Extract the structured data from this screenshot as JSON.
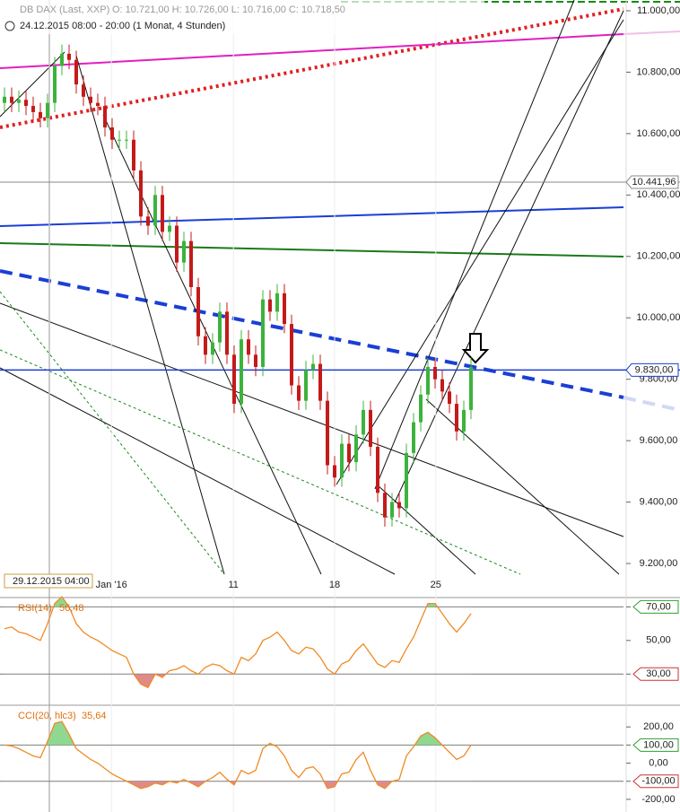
{
  "chart_data": [
    {
      "type": "candlestick",
      "title": "DB DAX (Last, XXP)",
      "ohlc_info": "O: 10.721,00  H: 10.726,00  L: 10.716,00  C: 10.718,50",
      "subtitle": "24.12.2015 08:00 - 20:00 (1 Monat, 4 Stunden)",
      "cursor_label": "29.12.2015 04:00",
      "up_color": "#3cb33c",
      "down_color": "#c41a1a",
      "open": [
        10700,
        10720,
        10700,
        10710,
        10690,
        10670,
        10650,
        10700,
        10820,
        10860,
        10840,
        10760,
        10720,
        10700,
        10690,
        10620,
        10580,
        10580,
        10580,
        10480,
        10330,
        10300,
        10400,
        10280,
        10300,
        10180,
        10250,
        10100,
        9940,
        9880,
        9920,
        10020,
        9880,
        9720,
        9930,
        9880,
        9840,
        10060,
        10020,
        10080,
        9980,
        9780,
        9730,
        9830,
        9850,
        9730,
        9520,
        9480,
        9590,
        9530,
        9620,
        9700,
        9580,
        9430,
        9350,
        9400,
        9380,
        9560,
        9660,
        9750,
        9840,
        9800,
        9760,
        9720,
        9630,
        9700
      ],
      "high": [
        10750,
        10750,
        10740,
        10740,
        10720,
        10700,
        10730,
        10850,
        10890,
        10890,
        10870,
        10790,
        10750,
        10730,
        10720,
        10650,
        10610,
        10610,
        10610,
        10510,
        10360,
        10430,
        10430,
        10330,
        10330,
        10280,
        10280,
        10130,
        9970,
        9950,
        10050,
        10050,
        9910,
        9960,
        9960,
        9910,
        10090,
        10090,
        10110,
        10110,
        10010,
        9810,
        9860,
        9880,
        9880,
        9760,
        9550,
        9620,
        9620,
        9650,
        9730,
        9730,
        9610,
        9460,
        9430,
        9430,
        9590,
        9690,
        9780,
        9870,
        9870,
        9830,
        9790,
        9750,
        9730,
        9870
      ],
      "low": [
        10670,
        10670,
        10670,
        10660,
        10640,
        10620,
        10620,
        10670,
        10790,
        10810,
        10730,
        10690,
        10670,
        10660,
        10590,
        10550,
        10550,
        10550,
        10450,
        10300,
        10270,
        10270,
        10250,
        10250,
        10150,
        10150,
        10070,
        9910,
        9850,
        9850,
        9890,
        9850,
        9690,
        9690,
        9850,
        9810,
        9810,
        9990,
        9990,
        9950,
        9750,
        9700,
        9700,
        9800,
        9700,
        9490,
        9450,
        9450,
        9500,
        9500,
        9590,
        9550,
        9400,
        9320,
        9320,
        9350,
        9350,
        9530,
        9630,
        9720,
        9770,
        9730,
        9690,
        9600,
        9600,
        9670
      ],
      "close": [
        10720,
        10700,
        10710,
        10690,
        10670,
        10650,
        10700,
        10820,
        10860,
        10840,
        10760,
        10720,
        10700,
        10690,
        10620,
        10580,
        10580,
        10580,
        10480,
        10330,
        10300,
        10400,
        10280,
        10300,
        10180,
        10250,
        10100,
        9940,
        9880,
        9920,
        10020,
        9880,
        9720,
        9930,
        9880,
        9840,
        10060,
        10020,
        10080,
        9980,
        9780,
        9730,
        9830,
        9850,
        9730,
        9520,
        9480,
        9590,
        9530,
        9620,
        9700,
        9580,
        9430,
        9350,
        9400,
        9380,
        9560,
        9660,
        9750,
        9840,
        9800,
        9760,
        9720,
        9630,
        9700,
        9840
      ],
      "xlim": [
        -0.625,
        86.25
      ],
      "xticks": [
        {
          "value": 14.9,
          "label": "Jan '16"
        },
        {
          "value": 31.9,
          "label": "11"
        },
        {
          "value": 46,
          "label": "18"
        },
        {
          "value": 60.1,
          "label": "25"
        }
      ],
      "ylim": [
        9092,
        11035
      ],
      "yticks": [
        {
          "value": 11000,
          "label": "11.000,00"
        },
        {
          "value": 10800,
          "label": "10.800,00"
        },
        {
          "value": 10600,
          "label": "10.600,00"
        },
        {
          "value": 10400,
          "label": "10.400,00"
        },
        {
          "value": 10200,
          "label": "10.200,00"
        },
        {
          "value": 10000,
          "label": "10.000,00"
        },
        {
          "value": 9800,
          "label": "9.800,00"
        },
        {
          "value": 9600,
          "label": "9.600,00"
        },
        {
          "value": 9400,
          "label": "9.400,00"
        },
        {
          "value": 9200,
          "label": "9.200,00"
        }
      ],
      "price_lines": [
        {
          "value": 10441.96,
          "label": "10.441,96",
          "color": "#888888"
        },
        {
          "value": 9830,
          "label": "9.830,00",
          "color": "#1a3fd4"
        }
      ]
    },
    {
      "type": "line",
      "title": "RSI(14)",
      "cursor_value": "56,48",
      "color": "#f08a24",
      "values": [
        57,
        58,
        55,
        54,
        52,
        50,
        60,
        72,
        76,
        70,
        60,
        55,
        52,
        50,
        47,
        44,
        42,
        40,
        30,
        24,
        22,
        30,
        28,
        32,
        33,
        35,
        32,
        30,
        34,
        36,
        35,
        32,
        30,
        40,
        38,
        42,
        50,
        52,
        55,
        50,
        44,
        42,
        46,
        45,
        40,
        33,
        30,
        36,
        38,
        44,
        48,
        42,
        36,
        34,
        38,
        37,
        45,
        52,
        62,
        72,
        72,
        66,
        60,
        55,
        60,
        66
      ],
      "ylim": [
        12,
        75
      ],
      "yticks": [
        {
          "value": 70,
          "label": "70,00",
          "highlight": "#2ca02c"
        },
        {
          "value": 50,
          "label": "50,00"
        },
        {
          "value": 30,
          "label": "30,00",
          "highlight": "#d03030"
        }
      ]
    },
    {
      "type": "line",
      "title": "CCI(20, hlc3)",
      "cursor_value": "35,64",
      "color": "#f08a24",
      "values": [
        100,
        95,
        80,
        60,
        40,
        30,
        120,
        220,
        230,
        160,
        80,
        50,
        20,
        0,
        -30,
        -60,
        -80,
        -100,
        -120,
        -140,
        -130,
        -110,
        -120,
        -100,
        -110,
        -90,
        -110,
        -130,
        -100,
        -80,
        -50,
        -90,
        -120,
        -40,
        -60,
        -40,
        80,
        110,
        90,
        40,
        -40,
        -80,
        -30,
        -20,
        -60,
        -140,
        -130,
        -60,
        -50,
        20,
        60,
        -40,
        -120,
        -140,
        -100,
        -90,
        40,
        90,
        150,
        170,
        140,
        100,
        60,
        20,
        40,
        100
      ],
      "ylim": [
        -270,
        315
      ],
      "yticks": [
        {
          "value": 200,
          "label": "200,00"
        },
        {
          "value": 100,
          "label": "100,00",
          "highlight": "#2ca02c"
        },
        {
          "value": 0,
          "label": "0,00"
        },
        {
          "value": -100,
          "label": "-100,00",
          "highlight": "#d03030"
        },
        {
          "value": -200,
          "label": "-200,00"
        }
      ]
    }
  ]
}
